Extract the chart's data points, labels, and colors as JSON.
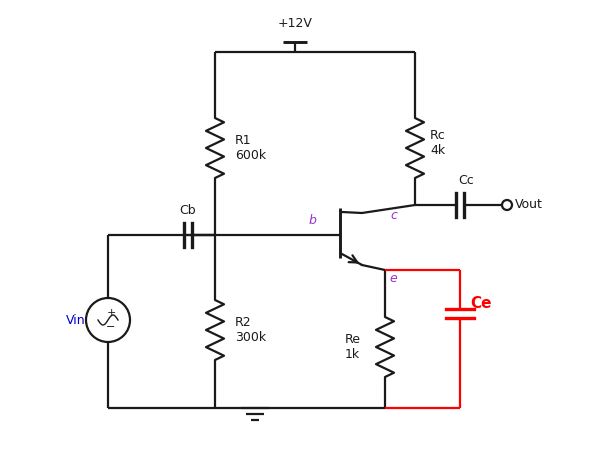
{
  "bg_color": "#ffffff",
  "black": "#1a1a1a",
  "red": "#ff0000",
  "purple": "#9933cc",
  "blue_vin": "#0000cc",
  "vcc_label": "+12V",
  "r1_label": "R1\n600k",
  "r2_label": "R2\n300k",
  "rc_label": "Rc\n4k",
  "re_label": "Re\n1k",
  "cb_label": "Cb",
  "cc_label": "Cc",
  "ce_label": "Ce",
  "vin_label": "Vin",
  "vout_label": "Vout",
  "b_label": "b",
  "c_label": "c",
  "e_label": "e",
  "figw": 6.15,
  "figh": 4.63,
  "dpi": 100
}
